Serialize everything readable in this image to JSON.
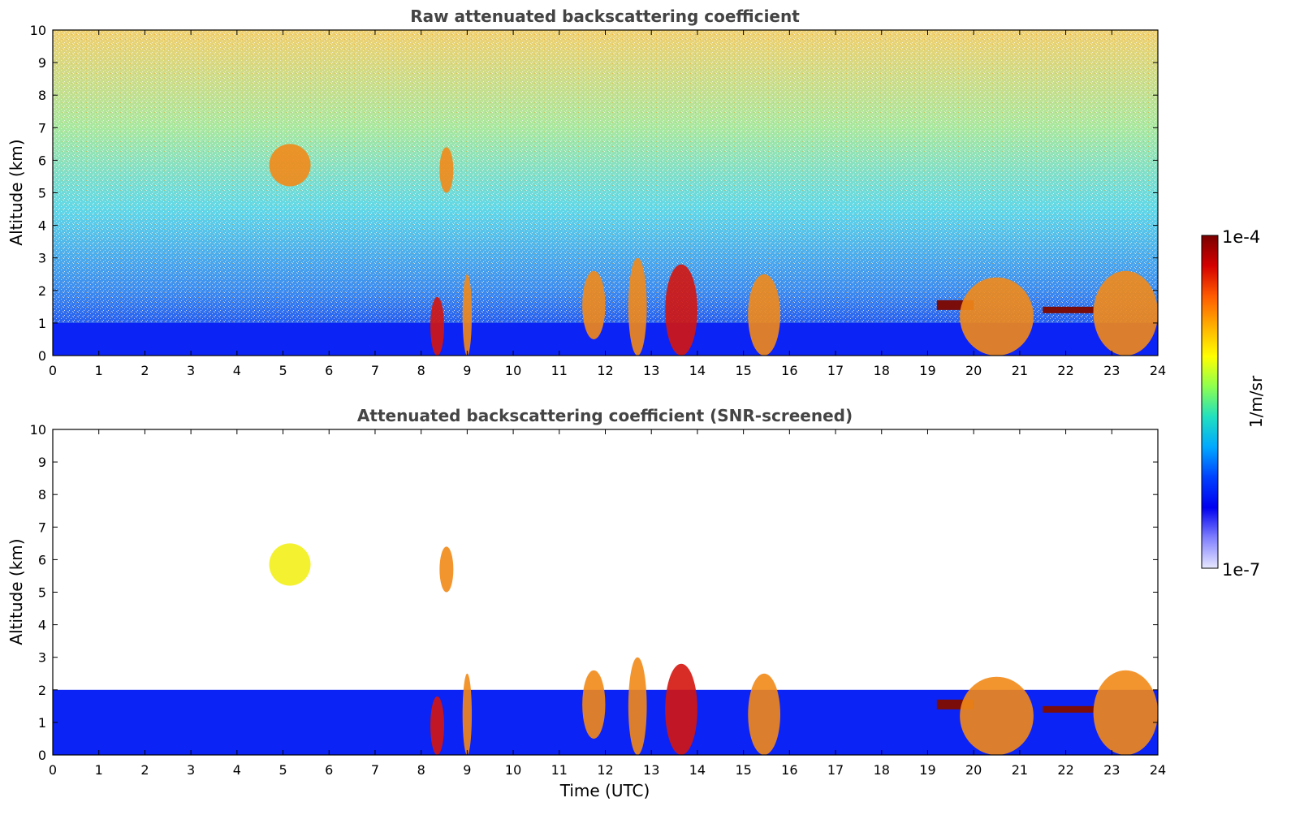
{
  "colors": {
    "blue": "#0b23f5",
    "cyan": "#24d4e6",
    "yellow": "#f2ef1a",
    "orange": "#f28a18",
    "red": "#d4150e",
    "dark_red": "#7a0d0a",
    "title": "#444444"
  },
  "colorbar": {
    "top_label": "1e-4",
    "bottom_label": "1e-7",
    "unit_label": "1/m/sr",
    "stops": [
      "#7a0000",
      "#d40000",
      "#ff5a00",
      "#ffb000",
      "#ffff00",
      "#8cff50",
      "#20e0c0",
      "#00a8ff",
      "#0040ff",
      "#0000f0",
      "#8080ff",
      "#e8e8ff"
    ]
  },
  "chart_data": [
    {
      "type": "heatmap",
      "title": "Raw attenuated backscattering coefficient",
      "xlabel": "",
      "ylabel": "Altitude (km)",
      "xlim": [
        0,
        24
      ],
      "ylim": [
        0,
        10
      ],
      "xticks": [
        "0",
        "1",
        "2",
        "3",
        "4",
        "5",
        "6",
        "7",
        "8",
        "9",
        "10",
        "11",
        "12",
        "13",
        "14",
        "15",
        "16",
        "17",
        "18",
        "19",
        "20",
        "21",
        "22",
        "23",
        "24"
      ],
      "yticks": [
        "0",
        "1",
        "2",
        "3",
        "4",
        "5",
        "6",
        "7",
        "8",
        "9",
        "10"
      ],
      "grid": false,
      "colorscale": "log",
      "value_range": [
        1e-07,
        0.0001
      ],
      "value_unit": "1/m/sr",
      "features": [
        {
          "kind": "boundary_layer",
          "x": [
            0,
            24
          ],
          "y": [
            0,
            1
          ],
          "level": "blue"
        },
        {
          "kind": "noise_background",
          "x": [
            0,
            24
          ],
          "y": [
            1,
            10
          ],
          "level": "cyan-yellow-orange"
        },
        {
          "kind": "cirrus",
          "x": [
            4.7,
            5.6
          ],
          "y": [
            5.2,
            6.5
          ],
          "level": "orange"
        },
        {
          "kind": "cirrus",
          "x": [
            8.4,
            8.7
          ],
          "y": [
            5.0,
            6.4
          ],
          "level": "orange"
        },
        {
          "kind": "cloud_base",
          "x": [
            8.2,
            8.5
          ],
          "y": [
            0,
            1.8
          ],
          "level": "red"
        },
        {
          "kind": "cloud_base",
          "x": [
            8.9,
            9.1
          ],
          "y": [
            0,
            2.5
          ],
          "level": "orange"
        },
        {
          "kind": "cloud_base",
          "x": [
            11.5,
            12.0
          ],
          "y": [
            0.5,
            2.6
          ],
          "level": "orange"
        },
        {
          "kind": "cloud_base",
          "x": [
            12.5,
            12.9
          ],
          "y": [
            0,
            3.0
          ],
          "level": "orange"
        },
        {
          "kind": "cloud_base",
          "x": [
            13.3,
            14.0
          ],
          "y": [
            0,
            2.8
          ],
          "level": "red"
        },
        {
          "kind": "cloud_base",
          "x": [
            15.1,
            15.8
          ],
          "y": [
            0,
            2.5
          ],
          "level": "orange"
        },
        {
          "kind": "low_cloud_top",
          "x": [
            19.2,
            20.0
          ],
          "y": [
            1.4,
            1.7
          ],
          "level": "dark_red"
        },
        {
          "kind": "cloud_base",
          "x": [
            19.7,
            21.3
          ],
          "y": [
            0,
            2.4
          ],
          "level": "orange"
        },
        {
          "kind": "low_cloud_top",
          "x": [
            21.5,
            22.6
          ],
          "y": [
            1.3,
            1.5
          ],
          "level": "dark_red"
        },
        {
          "kind": "cloud_base",
          "x": [
            22.6,
            24.0
          ],
          "y": [
            0,
            2.6
          ],
          "level": "orange"
        }
      ]
    },
    {
      "type": "heatmap",
      "title": "Attenuated backscattering coefficient (SNR-screened)",
      "xlabel": "Time (UTC)",
      "ylabel": "Altitude (km)",
      "xlim": [
        0,
        24
      ],
      "ylim": [
        0,
        10
      ],
      "xticks": [
        "0",
        "1",
        "2",
        "3",
        "4",
        "5",
        "6",
        "7",
        "8",
        "9",
        "10",
        "11",
        "12",
        "13",
        "14",
        "15",
        "16",
        "17",
        "18",
        "19",
        "20",
        "21",
        "22",
        "23",
        "24"
      ],
      "yticks": [
        "0",
        "1",
        "2",
        "3",
        "4",
        "5",
        "6",
        "7",
        "8",
        "9",
        "10"
      ],
      "grid": false,
      "colorscale": "log",
      "value_range": [
        1e-07,
        0.0001
      ],
      "value_unit": "1/m/sr",
      "features": [
        {
          "kind": "boundary_layer",
          "x": [
            0,
            24
          ],
          "y": [
            0,
            2.0
          ],
          "level": "blue"
        },
        {
          "kind": "cirrus",
          "x": [
            4.7,
            5.6
          ],
          "y": [
            5.2,
            6.5
          ],
          "level": "yellow"
        },
        {
          "kind": "cirrus",
          "x": [
            8.4,
            8.7
          ],
          "y": [
            5.0,
            6.4
          ],
          "level": "orange"
        },
        {
          "kind": "cloud_base",
          "x": [
            8.2,
            8.5
          ],
          "y": [
            0,
            1.8
          ],
          "level": "red"
        },
        {
          "kind": "cloud_base",
          "x": [
            8.9,
            9.1
          ],
          "y": [
            0,
            2.5
          ],
          "level": "orange"
        },
        {
          "kind": "cloud_base",
          "x": [
            11.5,
            12.0
          ],
          "y": [
            0.5,
            2.6
          ],
          "level": "orange"
        },
        {
          "kind": "cloud_base",
          "x": [
            12.5,
            12.9
          ],
          "y": [
            0,
            3.0
          ],
          "level": "orange"
        },
        {
          "kind": "cloud_base",
          "x": [
            13.3,
            14.0
          ],
          "y": [
            0,
            2.8
          ],
          "level": "red"
        },
        {
          "kind": "cloud_base",
          "x": [
            15.1,
            15.8
          ],
          "y": [
            0,
            2.5
          ],
          "level": "orange"
        },
        {
          "kind": "low_cloud_top",
          "x": [
            19.2,
            20.0
          ],
          "y": [
            1.4,
            1.7
          ],
          "level": "dark_red"
        },
        {
          "kind": "cloud_base",
          "x": [
            19.7,
            21.3
          ],
          "y": [
            0,
            2.4
          ],
          "level": "orange"
        },
        {
          "kind": "low_cloud_top",
          "x": [
            21.5,
            22.6
          ],
          "y": [
            1.3,
            1.5
          ],
          "level": "dark_red"
        },
        {
          "kind": "cloud_base",
          "x": [
            22.6,
            24.0
          ],
          "y": [
            0,
            2.6
          ],
          "level": "orange"
        }
      ]
    }
  ]
}
